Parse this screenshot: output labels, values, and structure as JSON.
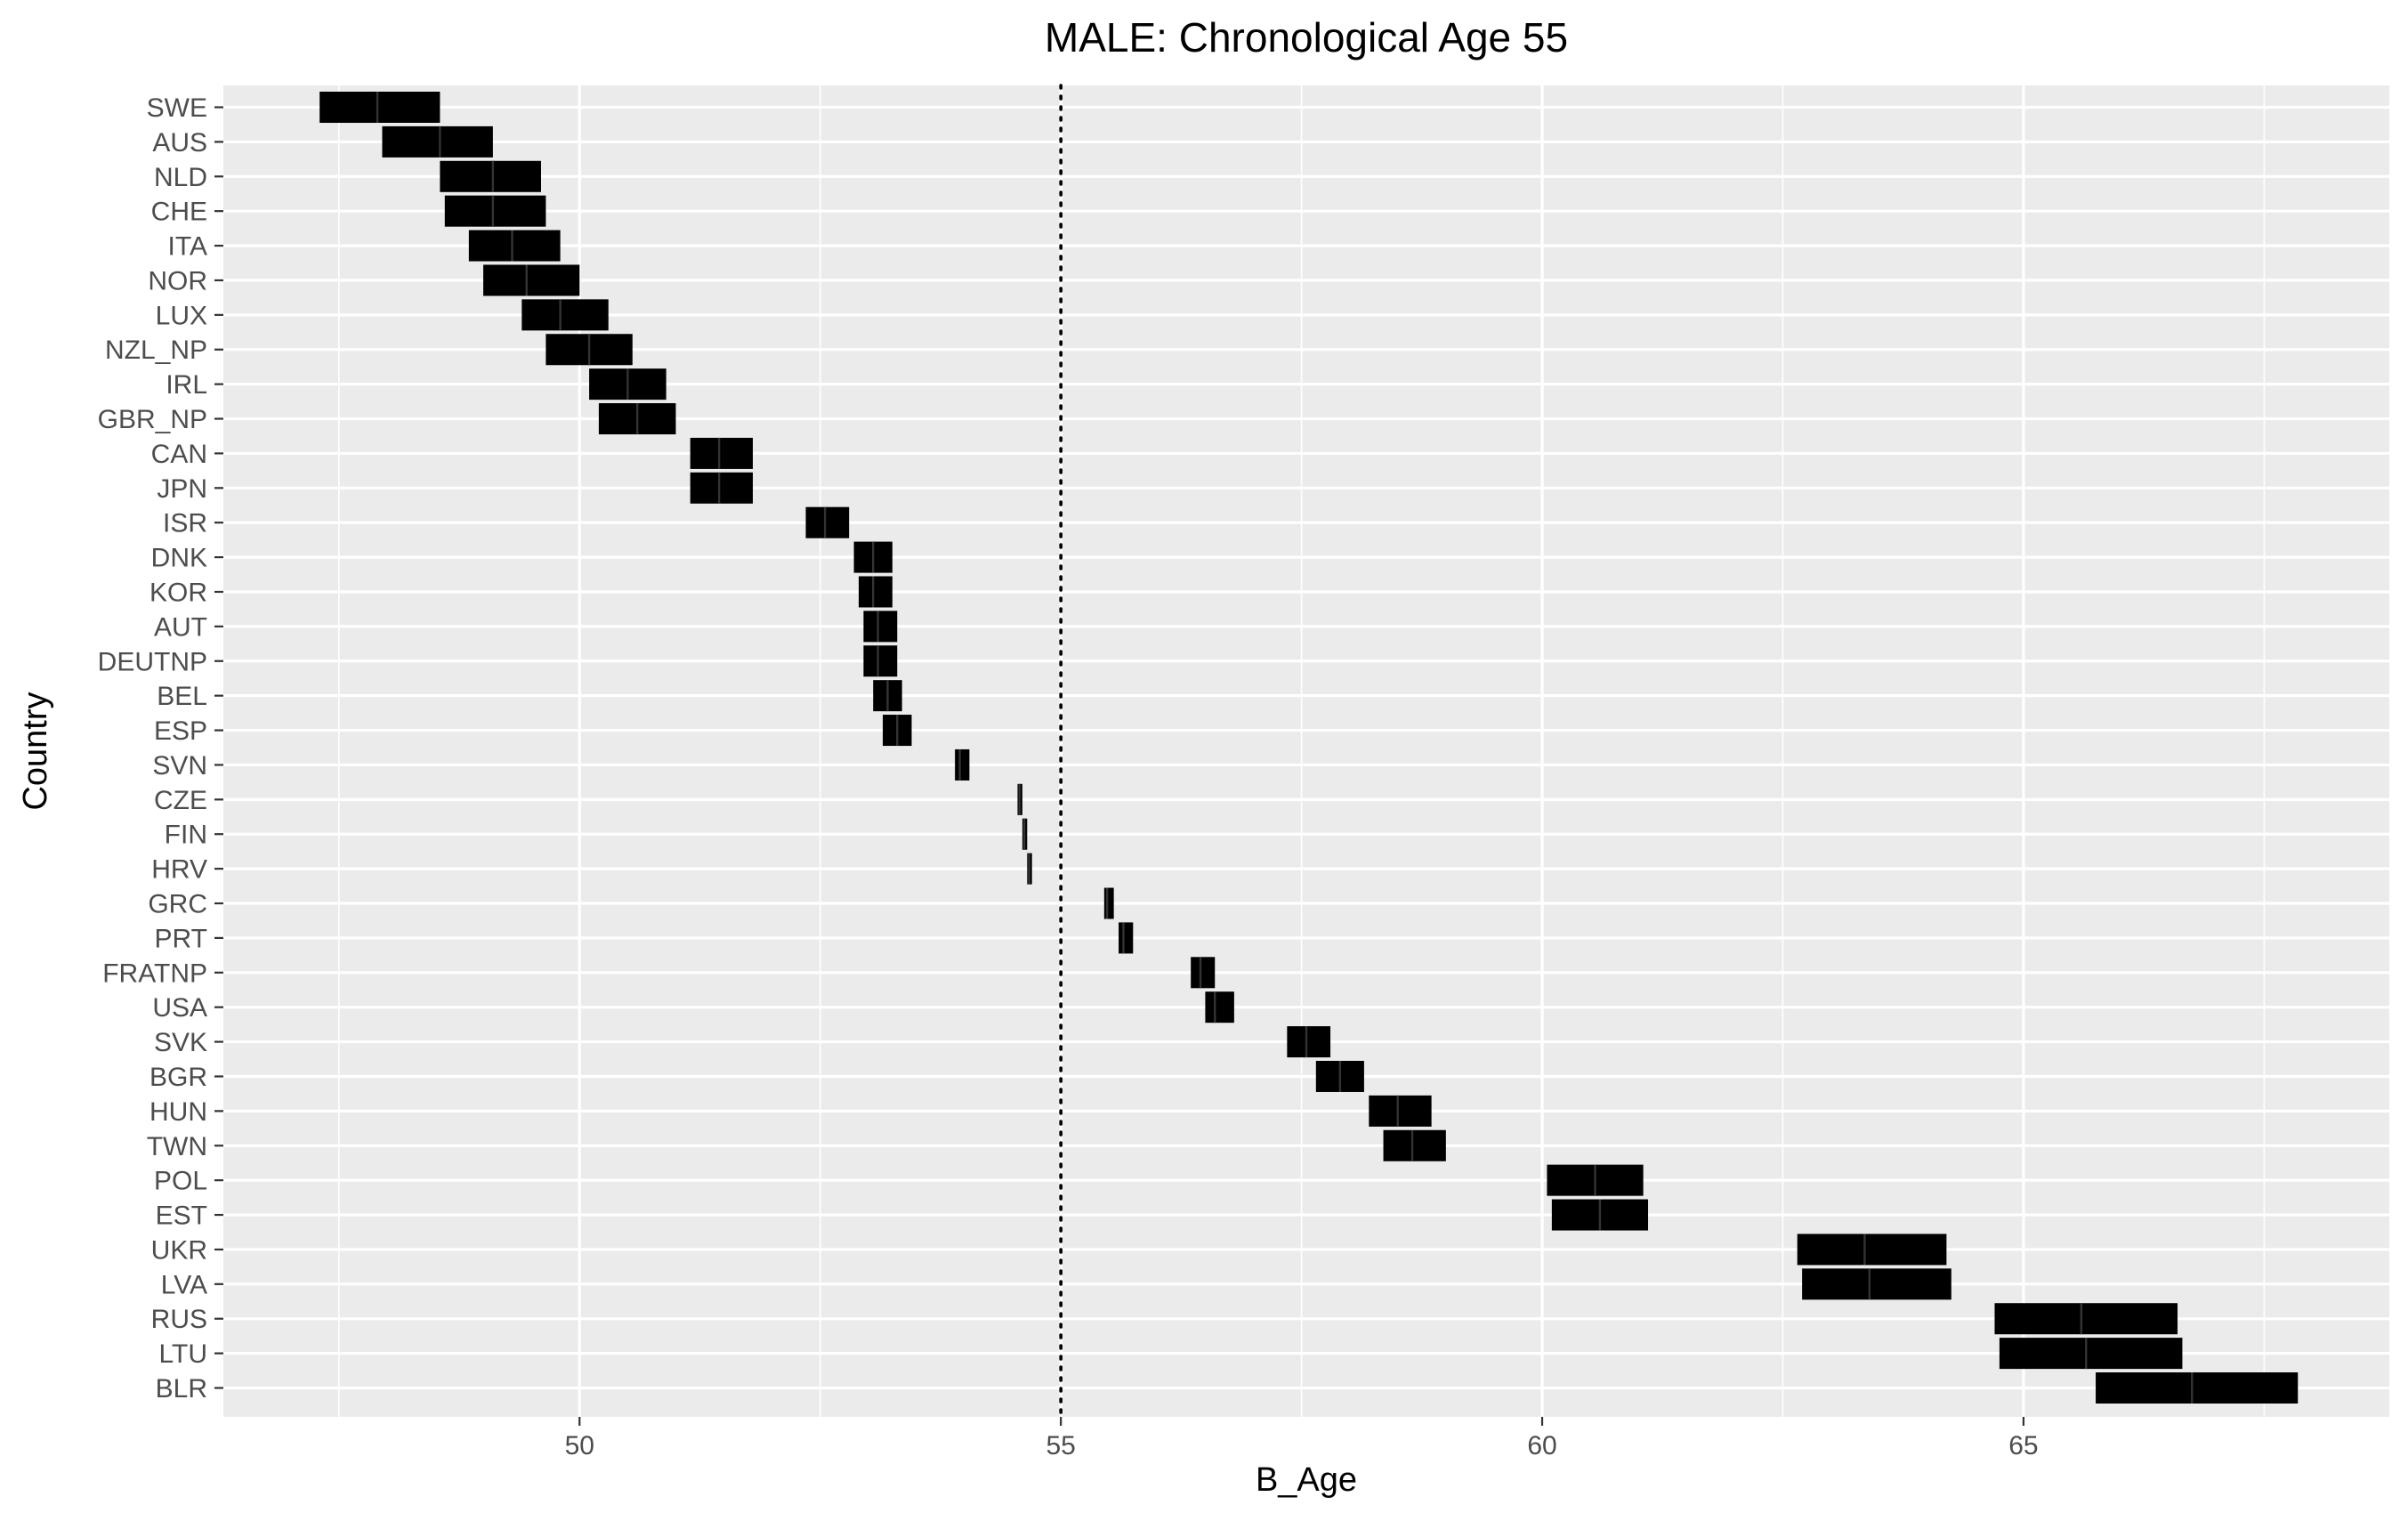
{
  "chart_data": {
    "type": "crossbar",
    "title": "MALE: Chronological Age 55",
    "xlabel": "B_Age",
    "ylabel": "Country",
    "xlim": [
      46.3,
      68.8
    ],
    "x_ticks": [
      50,
      55,
      60,
      65
    ],
    "x_tick_labels": [
      "50",
      "55",
      "60",
      "65"
    ],
    "x_minor_ticks": [
      47.5,
      52.5,
      57.5,
      62.5,
      67.5
    ],
    "reference_line": {
      "x": 55,
      "style": "dotted"
    },
    "grid": true,
    "categories": [
      "SWE",
      "AUS",
      "NLD",
      "CHE",
      "ITA",
      "NOR",
      "LUX",
      "NZL_NP",
      "IRL",
      "GBR_NP",
      "CAN",
      "JPN",
      "ISR",
      "DNK",
      "KOR",
      "AUT",
      "DEUTNP",
      "BEL",
      "ESP",
      "SVN",
      "CZE",
      "FIN",
      "HRV",
      "GRC",
      "PRT",
      "FRATNP",
      "USA",
      "SVK",
      "BGR",
      "HUN",
      "TWN",
      "POL",
      "EST",
      "UKR",
      "LVA",
      "RUS",
      "LTU",
      "BLR"
    ],
    "series": [
      {
        "category": "SWE",
        "lower": 47.3,
        "mid": 47.9,
        "upper": 48.55
      },
      {
        "category": "AUS",
        "lower": 47.95,
        "mid": 48.55,
        "upper": 49.1
      },
      {
        "category": "NLD",
        "lower": 48.55,
        "mid": 49.1,
        "upper": 49.6
      },
      {
        "category": "CHE",
        "lower": 48.6,
        "mid": 49.1,
        "upper": 49.65
      },
      {
        "category": "ITA",
        "lower": 48.85,
        "mid": 49.3,
        "upper": 49.8
      },
      {
        "category": "NOR",
        "lower": 49.0,
        "mid": 49.45,
        "upper": 50.0
      },
      {
        "category": "LUX",
        "lower": 49.4,
        "mid": 49.8,
        "upper": 50.3
      },
      {
        "category": "NZL_NP",
        "lower": 49.65,
        "mid": 50.1,
        "upper": 50.55
      },
      {
        "category": "IRL",
        "lower": 50.1,
        "mid": 50.5,
        "upper": 50.9
      },
      {
        "category": "GBR_NP",
        "lower": 50.2,
        "mid": 50.6,
        "upper": 51.0
      },
      {
        "category": "CAN",
        "lower": 51.15,
        "mid": 51.45,
        "upper": 51.8
      },
      {
        "category": "JPN",
        "lower": 51.15,
        "mid": 51.45,
        "upper": 51.8
      },
      {
        "category": "ISR",
        "lower": 52.35,
        "mid": 52.55,
        "upper": 52.8
      },
      {
        "category": "DNK",
        "lower": 52.85,
        "mid": 53.05,
        "upper": 53.25
      },
      {
        "category": "KOR",
        "lower": 52.9,
        "mid": 53.05,
        "upper": 53.25
      },
      {
        "category": "AUT",
        "lower": 52.95,
        "mid": 53.1,
        "upper": 53.3
      },
      {
        "category": "DEUTNP",
        "lower": 52.95,
        "mid": 53.1,
        "upper": 53.3
      },
      {
        "category": "BEL",
        "lower": 53.05,
        "mid": 53.2,
        "upper": 53.35
      },
      {
        "category": "ESP",
        "lower": 53.15,
        "mid": 53.3,
        "upper": 53.45
      },
      {
        "category": "SVN",
        "lower": 53.9,
        "mid": 53.95,
        "upper": 54.05
      },
      {
        "category": "CZE",
        "lower": 54.55,
        "mid": 54.57,
        "upper": 54.6
      },
      {
        "category": "FIN",
        "lower": 54.6,
        "mid": 54.62,
        "upper": 54.65
      },
      {
        "category": "HRV",
        "lower": 54.65,
        "mid": 54.67,
        "upper": 54.7
      },
      {
        "category": "GRC",
        "lower": 55.45,
        "mid": 55.48,
        "upper": 55.55
      },
      {
        "category": "PRT",
        "lower": 55.6,
        "mid": 55.65,
        "upper": 55.75
      },
      {
        "category": "FRATNP",
        "lower": 56.35,
        "mid": 56.45,
        "upper": 56.6
      },
      {
        "category": "USA",
        "lower": 56.5,
        "mid": 56.6,
        "upper": 56.8
      },
      {
        "category": "SVK",
        "lower": 57.35,
        "mid": 57.55,
        "upper": 57.8
      },
      {
        "category": "BGR",
        "lower": 57.65,
        "mid": 57.9,
        "upper": 58.15
      },
      {
        "category": "HUN",
        "lower": 58.2,
        "mid": 58.5,
        "upper": 58.85
      },
      {
        "category": "TWN",
        "lower": 58.35,
        "mid": 58.65,
        "upper": 59.0
      },
      {
        "category": "POL",
        "lower": 60.05,
        "mid": 60.55,
        "upper": 61.05
      },
      {
        "category": "EST",
        "lower": 60.1,
        "mid": 60.6,
        "upper": 61.1
      },
      {
        "category": "UKR",
        "lower": 62.65,
        "mid": 63.35,
        "upper": 64.2
      },
      {
        "category": "LVA",
        "lower": 62.7,
        "mid": 63.4,
        "upper": 64.25
      },
      {
        "category": "RUS",
        "lower": 64.7,
        "mid": 65.6,
        "upper": 66.6
      },
      {
        "category": "LTU",
        "lower": 64.75,
        "mid": 65.65,
        "upper": 66.65
      },
      {
        "category": "BLR",
        "lower": 65.75,
        "mid": 66.75,
        "upper": 67.85
      }
    ]
  }
}
